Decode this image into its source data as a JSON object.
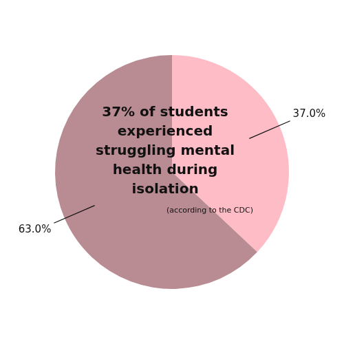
{
  "chart_data": {
    "type": "pie",
    "title": "37% of students experienced struggling mental health during isolation",
    "subtitle": "(according to the CDC)",
    "categories": [
      null,
      null
    ],
    "values": [
      37,
      63
    ],
    "value_labels": [
      "37.0%",
      "63.0%"
    ],
    "colors": [
      "#fdbcc6",
      "#b98b93"
    ],
    "data_labels": true
  }
}
